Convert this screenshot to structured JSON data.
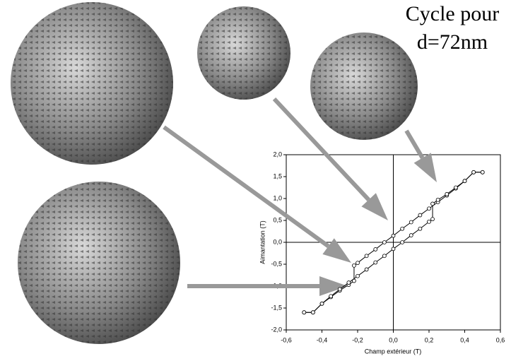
{
  "chart_data": {
    "type": "line",
    "title_lines": [
      "Cycle pour",
      "d=72nm"
    ],
    "x_label": "Champ extérieur (T)",
    "y_label": "Aimantation (T)",
    "xlim": [
      -0.6,
      0.6
    ],
    "ylim": [
      -2.0,
      2.0
    ],
    "xticks": [
      {
        "value": -0.6,
        "label": "-0,6"
      },
      {
        "value": -0.4,
        "label": "-0,4"
      },
      {
        "value": -0.2,
        "label": "-0,2"
      },
      {
        "value": 0,
        "label": "0,0"
      },
      {
        "value": 0.2,
        "label": "0,2"
      },
      {
        "value": 0.4,
        "label": "0,4"
      },
      {
        "value": 0.6,
        "label": "0,6"
      }
    ],
    "yticks": [
      {
        "value": -2.0,
        "label": "-2,0"
      },
      {
        "value": -1.5,
        "label": "-1,5"
      },
      {
        "value": -1.0,
        "label": "-1,0"
      },
      {
        "value": -0.5,
        "label": "-0,5"
      },
      {
        "value": 0,
        "label": "0,0"
      },
      {
        "value": 0.5,
        "label": "0,5"
      },
      {
        "value": 1.0,
        "label": "1,0"
      },
      {
        "value": 1.5,
        "label": "1,5"
      },
      {
        "value": 2.0,
        "label": "2,0"
      }
    ],
    "series": [
      {
        "color": "#000000",
        "x": [
          0.5,
          0.45,
          0.4,
          0.35,
          0.3,
          0.25,
          0.2,
          0.15,
          0.1,
          0.05,
          0,
          -0.05,
          -0.1,
          -0.15,
          -0.2,
          -0.22,
          -0.22,
          -0.25,
          -0.3,
          -0.35,
          -0.4,
          -0.45,
          -0.5
        ],
        "values": [
          1.6,
          1.6,
          1.4,
          1.23,
          1.07,
          0.92,
          0.77,
          0.62,
          0.46,
          0.31,
          0.15,
          0.0,
          -0.16,
          -0.31,
          -0.47,
          -0.53,
          -0.88,
          -0.97,
          -1.1,
          -1.25,
          -1.4,
          -1.6,
          -1.6
        ]
      },
      {
        "color": "#000000",
        "x": [
          -0.5,
          -0.45,
          -0.4,
          -0.35,
          -0.3,
          -0.25,
          -0.2,
          -0.15,
          -0.1,
          -0.05,
          0,
          0.05,
          0.1,
          0.15,
          0.2,
          0.22,
          0.22,
          0.25,
          0.3,
          0.35,
          0.4,
          0.45,
          0.5
        ],
        "values": [
          -1.6,
          -1.6,
          -1.4,
          -1.23,
          -1.07,
          -0.92,
          -0.77,
          -0.62,
          -0.46,
          -0.31,
          -0.15,
          0.0,
          0.16,
          0.31,
          0.47,
          0.53,
          0.88,
          0.97,
          1.1,
          1.25,
          1.4,
          1.6,
          1.6
        ]
      }
    ]
  }
}
